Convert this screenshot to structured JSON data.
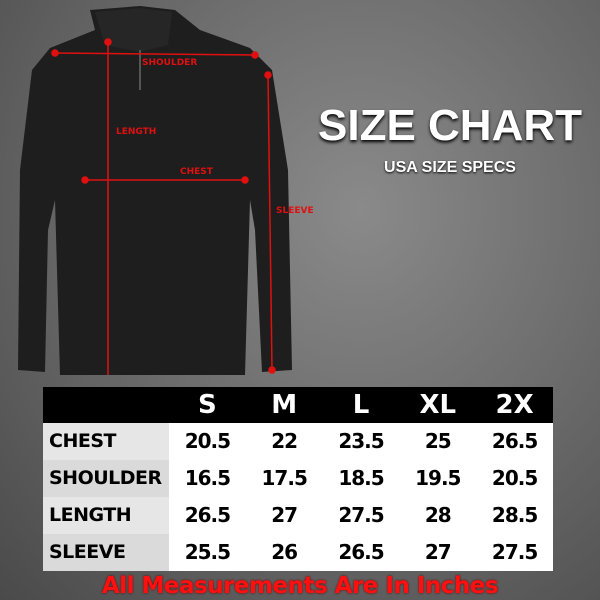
{
  "title": "SIZE CHART",
  "subtitle": "USA SIZE SPECS",
  "measure_labels": {
    "shoulder": "SHOULDER",
    "length": "LENGTH",
    "chest": "CHEST",
    "sleeve": "SLEEVE"
  },
  "table": {
    "sizes": [
      "S",
      "M",
      "L",
      "XL",
      "2X"
    ],
    "rows": [
      {
        "label": "CHEST",
        "values": [
          "20.5",
          "22",
          "23.5",
          "25",
          "26.5"
        ]
      },
      {
        "label": "SHOULDER",
        "values": [
          "16.5",
          "17.5",
          "18.5",
          "19.5",
          "20.5"
        ]
      },
      {
        "label": "LENGTH",
        "values": [
          "26.5",
          "27",
          "27.5",
          "28",
          "28.5"
        ]
      },
      {
        "label": "SLEEVE",
        "values": [
          "25.5",
          "26",
          "26.5",
          "27",
          "27.5"
        ]
      }
    ]
  },
  "footer": "All Measurements Are In Inches",
  "colors": {
    "accent": "#e01010",
    "header_bg": "#000000"
  }
}
